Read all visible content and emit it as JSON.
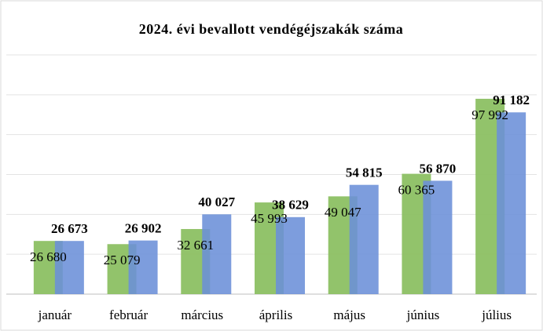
{
  "chart_data": {
    "type": "bar",
    "title": "2024. évi bevallott vendégéjszakák száma",
    "categories": [
      "január",
      "február",
      "március",
      "április",
      "május",
      "június",
      "július"
    ],
    "series": [
      {
        "color": "#8cc063",
        "values": [
          26680,
          25079,
          32661,
          45993,
          49047,
          60365,
          97992
        ],
        "value_labels": [
          "26 680",
          "25 079",
          "32 661",
          "45 993",
          "49 047",
          "60 365",
          "97 992"
        ]
      },
      {
        "color": "#6b8fd8",
        "values": [
          26673,
          26902,
          40027,
          38629,
          54815,
          56870,
          91182
        ],
        "value_labels": [
          "26 673",
          "26 902",
          "40 027",
          "38 629",
          "54 815",
          "56 870",
          "91 182"
        ]
      }
    ],
    "ylim": [
      0,
      120000
    ],
    "yticks": [
      0,
      20000,
      40000,
      60000,
      80000,
      100000,
      120000
    ],
    "grid": true
  }
}
